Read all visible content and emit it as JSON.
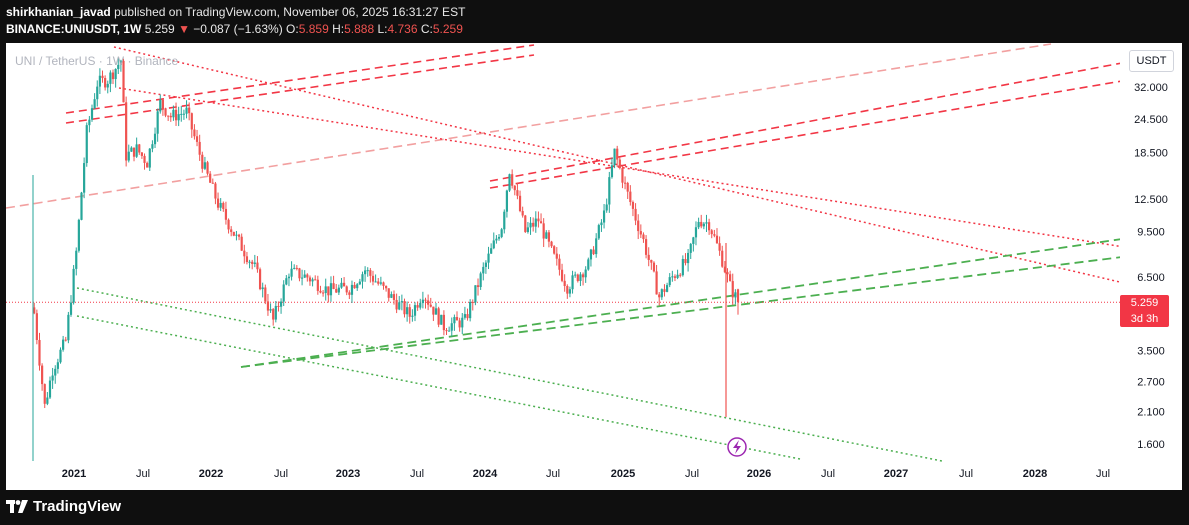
{
  "header": {
    "author": "shirkhanian_javad",
    "published_text": "published on TradingView.com, November 06, 2025 16:31:27 EST",
    "symbol": "BINANCE:UNIUSDT, 1W",
    "last": "5.259",
    "change": "−0.087 (−1.63%)",
    "o_label": "O:",
    "o_value": "5.859",
    "h_label": "H:",
    "h_value": "5.888",
    "l_label": "L:",
    "l_value": "4.736",
    "c_label": "C:",
    "c_value": "5.259"
  },
  "chart": {
    "legend": "UNI / TetherUS · 1W · Binance",
    "currency": "USDT",
    "price_badge": "5.259",
    "countdown": "3d 3h",
    "footer_brand": "TradingView",
    "colors": {
      "up": "#26a69a",
      "down": "#ef5350",
      "red_line": "#f23645",
      "pink_line": "#f2a0a0",
      "green_line": "#4caf50",
      "event": "#9c27b0"
    }
  },
  "chart_data": {
    "type": "candlestick",
    "title": "UNI / TetherUS · 1W · Binance",
    "scale": "log",
    "ylim": [
      1.3,
      50
    ],
    "y_ticks": [
      1.6,
      2.1,
      2.7,
      3.5,
      6.5,
      9.5,
      12.5,
      18.5,
      24.5,
      32.0
    ],
    "y_tick_labels": [
      "1.600",
      "2.100",
      "2.700",
      "3.500",
      "6.500",
      "9.500",
      "12.500",
      "18.500",
      "24.500",
      "32.000"
    ],
    "x_ticks": [
      "2021",
      "Jul",
      "2022",
      "Jul",
      "2023",
      "Jul",
      "2024",
      "Jul",
      "2025",
      "Jul",
      "2026",
      "Jul",
      "2027",
      "Jul",
      "2028",
      "Jul"
    ],
    "last_price": 5.259,
    "ohlc": {
      "open": 5.859,
      "high": 5.888,
      "low": 4.736,
      "close": 5.259
    },
    "price_path": [
      [
        "2020-09-17",
        4.8
      ],
      [
        "2020-10-15",
        2.2
      ],
      [
        "2020-11-05",
        3.0
      ],
      [
        "2020-12-10",
        3.8
      ],
      [
        "2021-01-07",
        8.0
      ],
      [
        "2021-02-04",
        22.0
      ],
      [
        "2021-03-04",
        33.0
      ],
      [
        "2021-04-01",
        34.0
      ],
      [
        "2021-05-06",
        40.0
      ],
      [
        "2021-05-20",
        18.0
      ],
      [
        "2021-06-17",
        19.0
      ],
      [
        "2021-07-15",
        17.0
      ],
      [
        "2021-08-19",
        28.0
      ],
      [
        "2021-09-16",
        25.0
      ],
      [
        "2021-10-28",
        26.0
      ],
      [
        "2021-12-09",
        17.0
      ],
      [
        "2022-01-20",
        12.0
      ],
      [
        "2022-03-10",
        9.0
      ],
      [
        "2022-04-28",
        7.0
      ],
      [
        "2022-06-16",
        4.5
      ],
      [
        "2022-07-28",
        6.8
      ],
      [
        "2022-09-15",
        6.5
      ],
      [
        "2022-11-10",
        5.8
      ],
      [
        "2023-01-05",
        5.9
      ],
      [
        "2023-02-16",
        6.9
      ],
      [
        "2023-04-20",
        5.6
      ],
      [
        "2023-06-15",
        4.7
      ],
      [
        "2023-07-20",
        5.7
      ],
      [
        "2023-09-14",
        4.3
      ],
      [
        "2023-11-09",
        4.5
      ],
      [
        "2023-12-28",
        6.9
      ],
      [
        "2024-02-15",
        10.0
      ],
      [
        "2024-03-07",
        16.0
      ],
      [
        "2024-04-18",
        9.5
      ],
      [
        "2024-05-23",
        10.5
      ],
      [
        "2024-06-27",
        8.0
      ],
      [
        "2024-08-08",
        6.0
      ],
      [
        "2024-10-03",
        7.2
      ],
      [
        "2024-11-14",
        11.0
      ],
      [
        "2024-12-12",
        18.5
      ],
      [
        "2025-01-16",
        13.0
      ],
      [
        "2025-02-27",
        8.8
      ],
      [
        "2025-04-10",
        5.5
      ],
      [
        "2025-05-15",
        6.5
      ],
      [
        "2025-06-26",
        7.5
      ],
      [
        "2025-07-24",
        10.5
      ],
      [
        "2025-08-21",
        10.2
      ],
      [
        "2025-09-25",
        7.5
      ],
      [
        "2025-10-16",
        6.0
      ],
      [
        "2025-11-06",
        5.259
      ]
    ]
  }
}
